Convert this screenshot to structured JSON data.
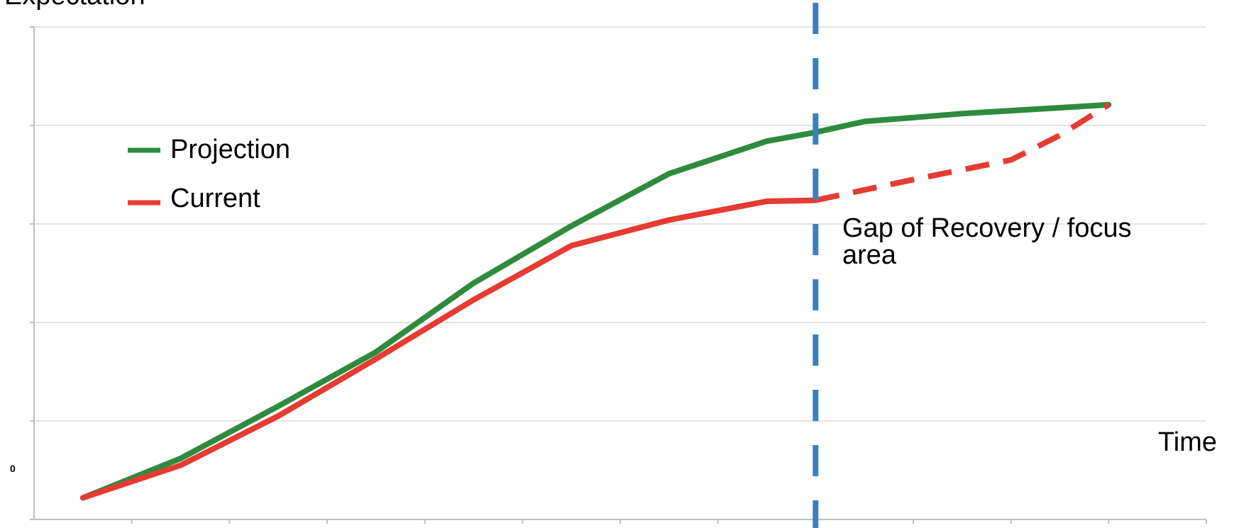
{
  "chart_data": {
    "type": "line",
    "title": "",
    "xlabel": "Time",
    "ylabel": "Expectation",
    "y_tick_labels": [
      "0"
    ],
    "ylim": [
      0,
      5
    ],
    "xlim": [
      0,
      12
    ],
    "grid": true,
    "legend_position": "top-left",
    "series": [
      {
        "name": "Projection",
        "color": "#2e8b3e",
        "line_style": "solid",
        "points": [
          [
            0.5,
            0.22
          ],
          [
            1.5,
            0.62
          ],
          [
            2.5,
            1.15
          ],
          [
            3.5,
            1.7
          ],
          [
            4.5,
            2.4
          ],
          [
            5.5,
            2.98
          ],
          [
            6.5,
            3.51
          ],
          [
            7.5,
            3.84
          ],
          [
            8.0,
            3.93
          ],
          [
            8.5,
            4.04
          ],
          [
            9.5,
            4.12
          ],
          [
            10.5,
            4.18
          ],
          [
            11.0,
            4.21
          ]
        ]
      },
      {
        "name": "Current",
        "color": "#e53b32",
        "line_style": "solid",
        "points": [
          [
            0.5,
            0.22
          ],
          [
            1.5,
            0.55
          ],
          [
            2.5,
            1.05
          ],
          [
            3.5,
            1.63
          ],
          [
            4.5,
            2.23
          ],
          [
            5.5,
            2.78
          ],
          [
            6.5,
            3.04
          ],
          [
            7.5,
            3.23
          ],
          [
            8.0,
            3.24
          ]
        ]
      },
      {
        "name": "",
        "color": "#e53b32",
        "line_style": "dashed",
        "points": [
          [
            8.0,
            3.24
          ],
          [
            9.0,
            3.45
          ],
          [
            10.0,
            3.65
          ],
          [
            10.5,
            3.9
          ],
          [
            11.0,
            4.21
          ]
        ]
      }
    ],
    "vertical_line": {
      "x": 8.0,
      "color": "#3a7fc1",
      "line_style": "dashed"
    },
    "annotation": {
      "text_line1": "Gap of Recovery / focus",
      "text_line2": "area"
    }
  }
}
